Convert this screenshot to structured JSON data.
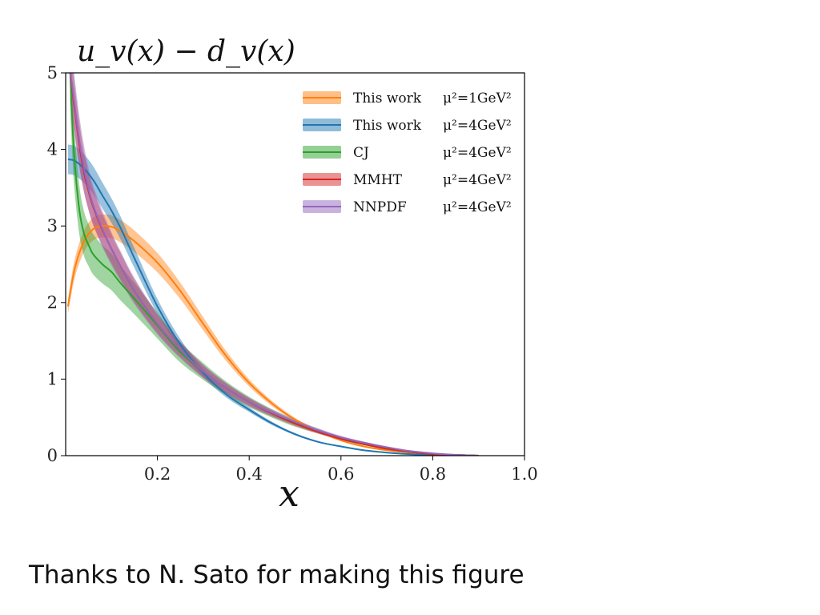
{
  "slide": {
    "caption": "Thanks to N. Sato for making this figure"
  },
  "chart_data": {
    "type": "line",
    "title": "u_v(x) − d_v(x)",
    "xlabel": "x",
    "ylabel": "",
    "xlim": [
      0.0,
      1.0
    ],
    "ylim": [
      0,
      5
    ],
    "xticks": [
      "0.2",
      "0.4",
      "0.6",
      "0.8",
      "1.0"
    ],
    "yticks": [
      "0",
      "1",
      "2",
      "3",
      "4",
      "5"
    ],
    "grid": false,
    "legend_position": "top-right",
    "series": [
      {
        "name": "This work",
        "scale": "μ²=1GeV²",
        "color": "#ff7f0e",
        "band_halfwidth": 0.05,
        "x": [
          0.005,
          0.02,
          0.04,
          0.06,
          0.08,
          0.1,
          0.12,
          0.15,
          0.2,
          0.25,
          0.3,
          0.35,
          0.4,
          0.45,
          0.5,
          0.55,
          0.6,
          0.65,
          0.7,
          0.75,
          0.8,
          0.85,
          0.9
        ],
        "y": [
          1.95,
          2.45,
          2.8,
          2.96,
          3.0,
          2.99,
          2.93,
          2.8,
          2.52,
          2.15,
          1.72,
          1.3,
          0.95,
          0.68,
          0.47,
          0.32,
          0.2,
          0.12,
          0.07,
          0.04,
          0.02,
          0.01,
          0.0
        ]
      },
      {
        "name": "This work",
        "scale": "μ²=4GeV²",
        "color": "#1f77b4",
        "band_halfwidth": 0.05,
        "x": [
          0.005,
          0.02,
          0.04,
          0.06,
          0.08,
          0.1,
          0.12,
          0.15,
          0.2,
          0.25,
          0.3,
          0.35,
          0.4,
          0.45,
          0.5,
          0.55,
          0.6,
          0.65,
          0.7,
          0.75,
          0.8,
          0.85,
          0.9
        ],
        "y": [
          3.87,
          3.85,
          3.75,
          3.6,
          3.4,
          3.2,
          2.97,
          2.58,
          1.95,
          1.45,
          1.08,
          0.8,
          0.6,
          0.42,
          0.28,
          0.18,
          0.12,
          0.07,
          0.04,
          0.02,
          0.01,
          0.005,
          0.0
        ]
      },
      {
        "name": "CJ",
        "scale": "μ²=4GeV²",
        "color": "#2ca02c",
        "band_halfwidth": 0.1,
        "x": [
          0.01,
          0.015,
          0.02,
          0.03,
          0.04,
          0.05,
          0.06,
          0.08,
          0.1,
          0.12,
          0.15,
          0.2,
          0.25,
          0.3,
          0.35,
          0.4,
          0.45,
          0.5,
          0.55,
          0.6,
          0.65,
          0.7,
          0.75,
          0.8,
          0.85,
          0.9
        ],
        "y": [
          5.0,
          4.3,
          3.8,
          3.2,
          2.9,
          2.75,
          2.63,
          2.5,
          2.4,
          2.25,
          2.05,
          1.7,
          1.35,
          1.1,
          0.88,
          0.7,
          0.55,
          0.42,
          0.32,
          0.22,
          0.15,
          0.09,
          0.05,
          0.02,
          0.01,
          0.0
        ]
      },
      {
        "name": "MMHT",
        "scale": "μ²=4GeV²",
        "color": "#d62728",
        "band_halfwidth": 0.07,
        "x": [
          0.01,
          0.015,
          0.02,
          0.03,
          0.04,
          0.05,
          0.06,
          0.08,
          0.1,
          0.12,
          0.15,
          0.2,
          0.25,
          0.3,
          0.35,
          0.4,
          0.45,
          0.5,
          0.55,
          0.6,
          0.65,
          0.7,
          0.75,
          0.8,
          0.85,
          0.9
        ],
        "y": [
          5.0,
          4.75,
          4.5,
          4.05,
          3.7,
          3.45,
          3.25,
          2.95,
          2.7,
          2.47,
          2.15,
          1.72,
          1.38,
          1.1,
          0.88,
          0.7,
          0.55,
          0.42,
          0.31,
          0.22,
          0.15,
          0.09,
          0.05,
          0.02,
          0.01,
          0.0
        ]
      },
      {
        "name": "NNPDF",
        "scale": "μ²=4GeV²",
        "color": "#9467bd",
        "band_halfwidth": 0.08,
        "x": [
          0.01,
          0.015,
          0.02,
          0.03,
          0.04,
          0.05,
          0.06,
          0.08,
          0.1,
          0.12,
          0.15,
          0.2,
          0.25,
          0.3,
          0.35,
          0.4,
          0.45,
          0.5,
          0.55,
          0.6,
          0.65,
          0.7,
          0.75,
          0.8,
          0.85,
          0.9
        ],
        "y": [
          5.0,
          4.8,
          4.55,
          4.1,
          3.75,
          3.48,
          3.27,
          2.96,
          2.7,
          2.47,
          2.15,
          1.72,
          1.38,
          1.1,
          0.88,
          0.7,
          0.56,
          0.44,
          0.33,
          0.24,
          0.17,
          0.11,
          0.06,
          0.03,
          0.01,
          0.0
        ]
      }
    ]
  }
}
